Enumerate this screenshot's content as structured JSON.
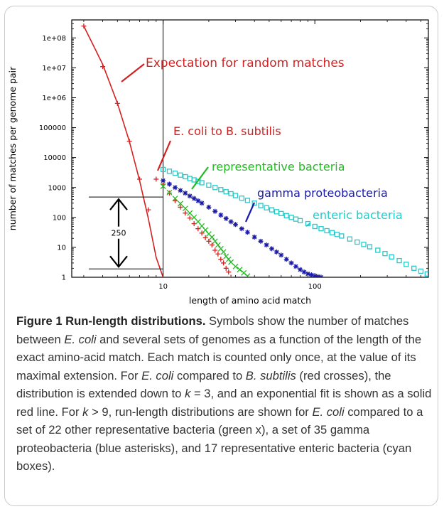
{
  "figure": {
    "caption_label": "Figure 1",
    "caption_title": "Run-length distributions.",
    "caption_segments": [
      {
        "t": " Symbols show the number of matches between ",
        "i": false
      },
      {
        "t": "E. coli",
        "i": true
      },
      {
        "t": " and several sets of genomes as a function of the length of the exact amino-acid match. Each match is counted only once, at the value of its maximal extension. For ",
        "i": false
      },
      {
        "t": "E. coli",
        "i": true
      },
      {
        "t": " compared to ",
        "i": false
      },
      {
        "t": "B. subtilis",
        "i": true
      },
      {
        "t": " (red crosses), the distribution is extended down to ",
        "i": false
      },
      {
        "t": "k",
        "i": true
      },
      {
        "t": " = 3, and an exponential fit is shown as a solid red line. For ",
        "i": false
      },
      {
        "t": "k",
        "i": true
      },
      {
        "t": " > 9, run-length distributions are shown for ",
        "i": false
      },
      {
        "t": "E. coli",
        "i": true
      },
      {
        "t": " compared to a set of 22 other representative bacteria (green x), a set of 35 gamma proteobacteria (blue asterisks), and 17 representative enteric bacteria (cyan boxes).",
        "i": false
      }
    ]
  },
  "chart_data": {
    "type": "scatter",
    "xlabel": "length of amino acid match",
    "ylabel": "number of matches per genome pair",
    "x_scale": "log",
    "y_scale": "log",
    "xlim": [
      2.5,
      560
    ],
    "ylim": [
      1,
      400000000
    ],
    "x_ticks": [
      {
        "v": 10,
        "label": "10"
      },
      {
        "v": 100,
        "label": "100"
      }
    ],
    "y_ticks": [
      {
        "v": 1,
        "label": "1"
      },
      {
        "v": 10,
        "label": "10"
      },
      {
        "v": 100,
        "label": "100"
      },
      {
        "v": 1000,
        "label": "1000"
      },
      {
        "v": 10000,
        "label": "10000"
      },
      {
        "v": 100000,
        "label": "100000"
      },
      {
        "v": 1000000,
        "label": "1e+06"
      },
      {
        "v": 10000000,
        "label": "1e+07"
      },
      {
        "v": 100000000,
        "label": "1e+08"
      }
    ],
    "vertical_line_x": 10,
    "exponential_fit": {
      "name": "Expectation for random matches",
      "color": "#d42020",
      "x": [
        3,
        4,
        5,
        6,
        7,
        8,
        9,
        10
      ],
      "y": [
        250000000,
        13000000,
        660000,
        34000,
        1700,
        90,
        4.6,
        1
      ]
    },
    "series": [
      {
        "name": "E. coli to B. subtilis",
        "marker": "plus",
        "color": "#d42020",
        "x": [
          3,
          4,
          5,
          6,
          7,
          8,
          9,
          10,
          11,
          12,
          13,
          14,
          15,
          16,
          17,
          18,
          19,
          20,
          21,
          22,
          23,
          24,
          25,
          26,
          27,
          28
        ],
        "y": [
          250000000,
          11000000,
          650000,
          35000,
          1900,
          180,
          1900,
          1300,
          650,
          360,
          220,
          140,
          95,
          62,
          42,
          30,
          21,
          16,
          12,
          8,
          6,
          4,
          3,
          2,
          1.5,
          1
        ]
      },
      {
        "name": "representative bacteria",
        "marker": "x",
        "color": "#22bb22",
        "x": [
          10,
          11,
          12,
          13,
          14,
          15,
          16,
          17,
          18,
          19,
          20,
          21,
          22,
          23,
          24,
          25,
          26,
          27,
          28,
          30,
          32,
          34,
          36
        ],
        "y": [
          1100,
          680,
          430,
          290,
          200,
          140,
          100,
          72,
          52,
          38,
          28,
          22,
          16,
          12,
          9,
          7,
          5,
          4,
          3.2,
          2.3,
          1.8,
          1.4,
          1.1
        ]
      },
      {
        "name": "gamma proteobacteria",
        "marker": "asterisk",
        "color": "#1a1aa6",
        "x": [
          10,
          11,
          12,
          13,
          14,
          15,
          16,
          17,
          18,
          20,
          22,
          24,
          26,
          28,
          30,
          33,
          36,
          40,
          44,
          48,
          52,
          56,
          60,
          65,
          70,
          75,
          80,
          85,
          90,
          95,
          100,
          105,
          110
        ],
        "y": [
          1700,
          1300,
          1000,
          800,
          650,
          520,
          430,
          360,
          300,
          220,
          160,
          120,
          92,
          72,
          58,
          42,
          32,
          22,
          16,
          12,
          9,
          7,
          5.5,
          4,
          3,
          2.3,
          1.8,
          1.5,
          1.3,
          1.2,
          1.1,
          1.05,
          1
        ]
      },
      {
        "name": "enteric bacteria",
        "marker": "square",
        "color": "#22cccc",
        "x": [
          10,
          11,
          12,
          13,
          14,
          15,
          16,
          17,
          18,
          20,
          22,
          24,
          26,
          28,
          30,
          33,
          36,
          40,
          44,
          48,
          52,
          56,
          60,
          65,
          70,
          75,
          80,
          90,
          100,
          110,
          120,
          130,
          140,
          150,
          170,
          190,
          210,
          230,
          260,
          290,
          320,
          360,
          400,
          450,
          500,
          550
        ],
        "y": [
          4000,
          3500,
          3000,
          2600,
          2300,
          2000,
          1800,
          1600,
          1450,
          1200,
          1000,
          850,
          720,
          620,
          540,
          440,
          370,
          300,
          250,
          210,
          180,
          155,
          135,
          115,
          100,
          88,
          78,
          62,
          50,
          42,
          36,
          31,
          27,
          24,
          19,
          15,
          12.5,
          10.5,
          8,
          6.2,
          4.8,
          3.6,
          2.7,
          2,
          1.6,
          1.3
        ]
      }
    ],
    "annotations": [
      {
        "text": "Expectation for random matches",
        "color": "#d42020"
      },
      {
        "text": "E. coli to B. subtilis",
        "color": "#d42020"
      },
      {
        "text": "representative bacteria",
        "color": "#22bb22"
      },
      {
        "text": "gamma proteobacteria",
        "color": "#1a1aa6"
      },
      {
        "text": "enteric bacteria",
        "color": "#22cccc"
      }
    ],
    "span_marker": {
      "label": "250",
      "y_top": 480,
      "y_bottom": 1.9
    }
  }
}
